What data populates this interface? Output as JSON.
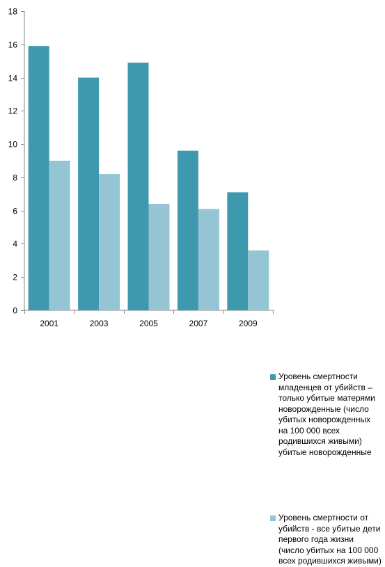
{
  "chart_data": {
    "type": "bar",
    "categories": [
      "2001",
      "2003",
      "2005",
      "2007",
      "2009"
    ],
    "series": [
      {
        "name": "Уровень смертности младенцев от убийств – только убитые матерями новорожденные (число убитых новорожденных на 100 000 всех родившихся живыми) убитые новорожденные",
        "values": [
          15.9,
          14.0,
          14.9,
          9.6,
          7.1
        ],
        "color": "#3f99ae"
      },
      {
        "name": "Уровень смертности от убийств - все убитые дети первого года жизни (число убитых на 100 000 всех родившихся живыми)",
        "values": [
          9.0,
          8.2,
          6.4,
          6.1,
          3.6
        ],
        "color": "#95c5d4"
      }
    ],
    "ylim": [
      0,
      18
    ],
    "yticks": [
      0,
      2,
      4,
      6,
      8,
      10,
      12,
      14,
      16,
      18
    ],
    "grid": false,
    "legend": "right",
    "title": "",
    "xlabel": "",
    "ylabel": ""
  }
}
